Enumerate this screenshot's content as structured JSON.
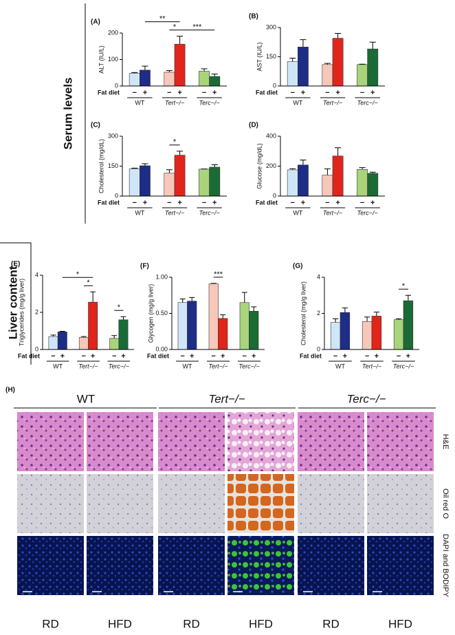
{
  "section_labels": {
    "serum": "Serum levels",
    "liver": "Liver content"
  },
  "chart_data": [
    {
      "type": "bar",
      "panel": "(A)",
      "y_label": "ALT (IU/L)",
      "x_row_label": "Fat diet",
      "categories": [
        "WT",
        "Tert−/−",
        "Terc−/−"
      ],
      "series": [
        {
          "name": "−",
          "colors": [
            "#cfe6f7",
            "#f7c7ba",
            "#a9d47b"
          ],
          "values": [
            48,
            52,
            56
          ],
          "errors": [
            3,
            6,
            9
          ]
        },
        {
          "name": "+",
          "colors": [
            "#1e2d86",
            "#e1251b",
            "#1a6b36"
          ],
          "values": [
            60,
            158,
            36
          ],
          "errors": [
            15,
            30,
            9
          ]
        }
      ],
      "ylim": [
        0,
        200
      ],
      "yticks": [
        0,
        100,
        200
      ],
      "significance": [
        {
          "text": "**",
          "from": [
            0,
            1
          ],
          "to": [
            1,
            1
          ]
        },
        {
          "text": "*",
          "from": [
            1,
            0
          ],
          "to": [
            1,
            1
          ]
        },
        {
          "text": "***",
          "from": [
            1,
            1
          ],
          "to": [
            2,
            1
          ]
        }
      ]
    },
    {
      "type": "bar",
      "panel": "(B)",
      "y_label": "AST (IU/L)",
      "x_row_label": "Fat diet",
      "categories": [
        "WT",
        "Tert−/−",
        "Terc−/−"
      ],
      "series": [
        {
          "name": "−",
          "colors": [
            "#cfe6f7",
            "#f7c7ba",
            "#a9d47b"
          ],
          "values": [
            125,
            110,
            110
          ],
          "errors": [
            18,
            6,
            2
          ]
        },
        {
          "name": "+",
          "colors": [
            "#1e2d86",
            "#e1251b",
            "#1a6b36"
          ],
          "values": [
            200,
            245,
            190
          ],
          "errors": [
            38,
            25,
            35
          ]
        }
      ],
      "ylim": [
        0,
        300
      ],
      "yticks": [
        0,
        150,
        300
      ],
      "significance": []
    },
    {
      "type": "bar",
      "panel": "(C)",
      "y_label": "Cholesterol (mg/dL)",
      "x_row_label": "Fat diet",
      "categories": [
        "WT",
        "Tert−/−",
        "Terc−/−"
      ],
      "series": [
        {
          "name": "−",
          "colors": [
            "#cfe6f7",
            "#f7c7ba",
            "#a9d47b"
          ],
          "values": [
            137,
            115,
            135
          ],
          "errors": [
            3,
            17,
            1
          ]
        },
        {
          "name": "+",
          "colors": [
            "#1e2d86",
            "#e1251b",
            "#1a6b36"
          ],
          "values": [
            152,
            205,
            145
          ],
          "errors": [
            10,
            20,
            12
          ]
        }
      ],
      "ylim": [
        0,
        300
      ],
      "yticks": [
        0,
        150,
        300
      ],
      "significance": [
        {
          "text": "*",
          "from": [
            1,
            0
          ],
          "to": [
            1,
            1
          ]
        }
      ]
    },
    {
      "type": "bar",
      "panel": "(D)",
      "y_label": "Glucose (mg/dL)",
      "x_row_label": "Fat diet",
      "categories": [
        "WT",
        "Tert−/−",
        "Terc−/−"
      ],
      "series": [
        {
          "name": "−",
          "colors": [
            "#cfe6f7",
            "#f7c7ba",
            "#a9d47b"
          ],
          "values": [
            175,
            140,
            178
          ],
          "errors": [
            8,
            42,
            12
          ]
        },
        {
          "name": "+",
          "colors": [
            "#1e2d86",
            "#e1251b",
            "#1a6b36"
          ],
          "values": [
            208,
            268,
            152
          ],
          "errors": [
            33,
            55,
            8
          ]
        }
      ],
      "ylim": [
        0,
        400
      ],
      "yticks": [
        0,
        200,
        400
      ],
      "significance": []
    },
    {
      "type": "bar",
      "panel": "(E)",
      "y_label": "Triglycerides (mg/g liver)",
      "x_row_label": "Fat diet",
      "categories": [
        "WT",
        "Tert−/−",
        "Terc−/−"
      ],
      "series": [
        {
          "name": "−",
          "colors": [
            "#cfe6f7",
            "#f7c7ba",
            "#a9d47b"
          ],
          "values": [
            0.7,
            0.65,
            0.6
          ],
          "errors": [
            0.08,
            0.05,
            0.15
          ]
        },
        {
          "name": "+",
          "colors": [
            "#1e2d86",
            "#e1251b",
            "#1a6b36"
          ],
          "values": [
            0.95,
            2.55,
            1.6
          ],
          "errors": [
            0.03,
            0.55,
            0.17
          ]
        }
      ],
      "ylim": [
        0,
        4
      ],
      "yticks": [
        0,
        2,
        4
      ],
      "significance": [
        {
          "text": "*",
          "from": [
            0,
            1
          ],
          "to": [
            1,
            1
          ]
        },
        {
          "text": "*",
          "from": [
            1,
            0
          ],
          "to": [
            1,
            1
          ]
        },
        {
          "text": "*",
          "from": [
            2,
            0
          ],
          "to": [
            2,
            1
          ]
        }
      ]
    },
    {
      "type": "bar",
      "panel": "(F)",
      "y_label": "Glycogen (mg/g liver)",
      "x_row_label": "Fat diet",
      "categories": [
        "WT",
        "Tert−/−",
        "Terc−/−"
      ],
      "series": [
        {
          "name": "−",
          "colors": [
            "#cfe6f7",
            "#f7c7ba",
            "#a9d47b"
          ],
          "values": [
            0.65,
            0.91,
            0.65
          ],
          "errors": [
            0.05,
            0.005,
            0.14
          ]
        },
        {
          "name": "+",
          "colors": [
            "#1e2d86",
            "#e1251b",
            "#1a6b36"
          ],
          "values": [
            0.67,
            0.43,
            0.53
          ],
          "errors": [
            0.05,
            0.05,
            0.06
          ]
        }
      ],
      "ylim": [
        0,
        1
      ],
      "yticks": [
        {
          "value": 0,
          "label": "0.00"
        },
        {
          "value": 0.5,
          "label": "0.50"
        },
        {
          "value": 1,
          "label": "1.00"
        }
      ],
      "significance": [
        {
          "text": "***",
          "from": [
            1,
            0
          ],
          "to": [
            1,
            1
          ]
        }
      ]
    },
    {
      "type": "bar",
      "panel": "(G)",
      "y_label": "Cholesterol (mg/g liver)",
      "x_row_label": "Fat diet",
      "categories": [
        "WT",
        "Tert−/−",
        "Terc−/−"
      ],
      "series": [
        {
          "name": "−",
          "colors": [
            "#cfe6f7",
            "#f7c7ba",
            "#a9d47b"
          ],
          "values": [
            1.5,
            1.55,
            1.65
          ],
          "errors": [
            0.2,
            0.25,
            0.05
          ]
        },
        {
          "name": "+",
          "colors": [
            "#1e2d86",
            "#e1251b",
            "#1a6b36"
          ],
          "values": [
            2.05,
            1.85,
            2.7
          ],
          "errors": [
            0.25,
            0.22,
            0.3
          ]
        }
      ],
      "ylim": [
        0,
        4
      ],
      "yticks": [
        0,
        2,
        4
      ],
      "significance": [
        {
          "text": "*",
          "from": [
            2,
            0
          ],
          "to": [
            2,
            1
          ]
        }
      ]
    }
  ],
  "histology": {
    "label": "(H)",
    "groups": [
      "WT",
      "Tert−/−",
      "Terc−/−"
    ],
    "stains": [
      "H&E",
      "Oil red O",
      "DAPI and BODIPY"
    ],
    "diets": [
      "RD",
      "HFD"
    ]
  }
}
